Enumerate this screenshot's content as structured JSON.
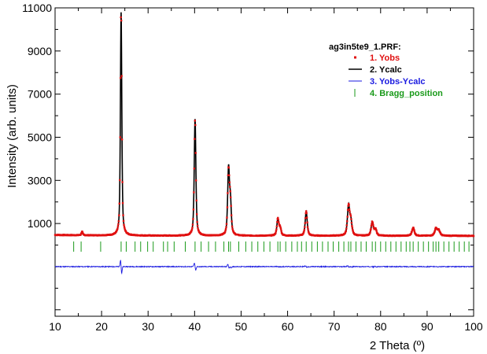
{
  "chart_data": {
    "type": "line",
    "title": "",
    "xlabel": "2 Theta (º)",
    "ylabel": "Intensity (arb. units)",
    "xlim": [
      10,
      100
    ],
    "ylim": [
      -3300,
      11000
    ],
    "x_ticks": [
      10,
      20,
      30,
      40,
      50,
      60,
      70,
      80,
      90,
      100
    ],
    "y_ticks": [
      1000,
      3000,
      5000,
      7000,
      9000,
      11000
    ],
    "y_tick_labels": [
      "1000",
      "3000",
      "5000",
      "7000",
      "9000",
      "11000"
    ],
    "legend": {
      "title": "ag3in5te9_1.PRF:",
      "position": "top-right",
      "entries": [
        {
          "label": "1. Yobs",
          "color": "#e01010",
          "marker": "square"
        },
        {
          "label": "2. Ycalc",
          "color": "#000000",
          "marker": "line"
        },
        {
          "label": "3. Yobs-Ycalc",
          "color": "#1a1ae0",
          "marker": "line"
        },
        {
          "label": "4. Bragg_position",
          "color": "#1a9a1a",
          "marker": "tick"
        }
      ]
    },
    "background": 430,
    "peaks": [
      {
        "x": 15.8,
        "height": 170
      },
      {
        "x": 24.2,
        "height": 10350
      },
      {
        "x": 40.1,
        "height": 5420
      },
      {
        "x": 47.3,
        "height": 3020
      },
      {
        "x": 47.7,
        "height": 1480
      },
      {
        "x": 57.9,
        "height": 760
      },
      {
        "x": 58.4,
        "height": 350
      },
      {
        "x": 64.0,
        "height": 1120
      },
      {
        "x": 73.1,
        "height": 1380
      },
      {
        "x": 73.6,
        "height": 640
      },
      {
        "x": 78.2,
        "height": 620
      },
      {
        "x": 78.9,
        "height": 280
      },
      {
        "x": 87.0,
        "height": 370
      },
      {
        "x": 91.9,
        "height": 330
      },
      {
        "x": 92.5,
        "height": 240
      }
    ],
    "difference_offset": -1000,
    "bragg_positions": [
      14.0,
      15.6,
      19.8,
      24.2,
      25.3,
      27.2,
      28.4,
      29.9,
      31.1,
      33.3,
      34.2,
      35.6,
      38.0,
      40.1,
      41.4,
      43.0,
      44.5,
      46.3,
      47.3,
      47.7,
      49.5,
      51.0,
      52.3,
      53.6,
      54.9,
      56.2,
      57.9,
      58.4,
      59.6,
      60.9,
      62.1,
      63.0,
      64.0,
      65.2,
      66.4,
      67.5,
      68.7,
      69.8,
      71.0,
      72.1,
      73.1,
      73.6,
      74.7,
      75.8,
      76.9,
      78.2,
      78.9,
      80.0,
      81.1,
      82.2,
      83.3,
      84.4,
      85.5,
      86.3,
      87.0,
      88.1,
      89.2,
      90.3,
      91.3,
      91.9,
      92.5,
      93.6,
      94.7,
      95.8,
      96.9,
      98.0,
      99.0
    ],
    "bragg_row_y": -1000
  }
}
